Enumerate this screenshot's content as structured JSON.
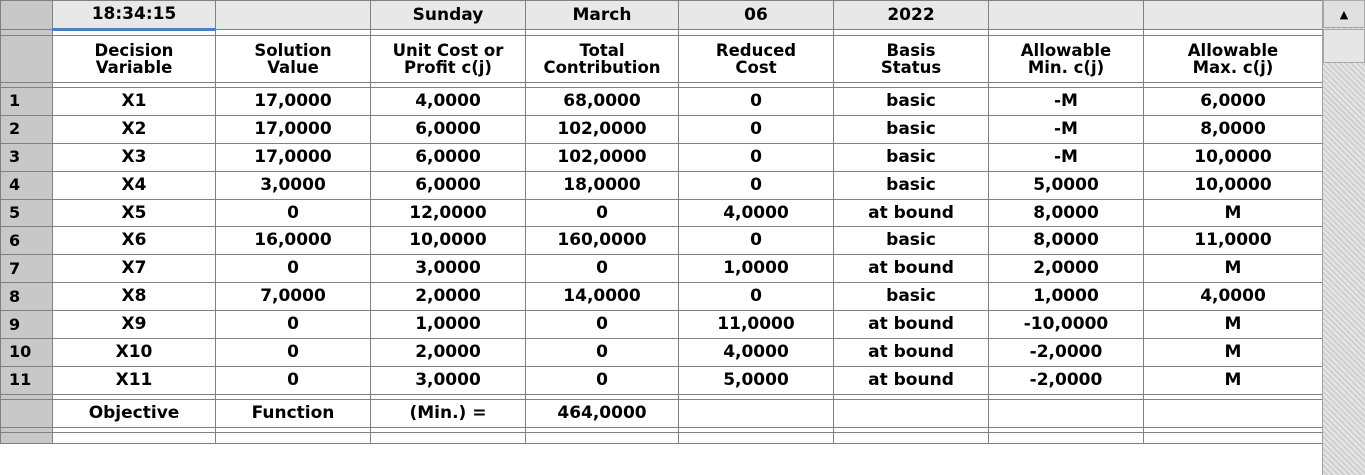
{
  "header": {
    "time": "18:34:15",
    "blank1": "",
    "weekday": "Sunday",
    "month": "March",
    "day": "06",
    "year": "2022"
  },
  "columns": [
    [
      "Decision",
      "Variable"
    ],
    [
      "Solution",
      "Value"
    ],
    [
      "Unit Cost or",
      "Profit c(j)"
    ],
    [
      "Total",
      "Contribution"
    ],
    [
      "Reduced",
      "Cost"
    ],
    [
      "Basis",
      "Status"
    ],
    [
      "Allowable",
      "Min. c(j)"
    ],
    [
      "Allowable",
      "Max. c(j)"
    ]
  ],
  "rows": [
    {
      "n": "1",
      "cells": [
        "X1",
        "17,0000",
        "4,0000",
        "68,0000",
        "0",
        "basic",
        "-M",
        "6,0000"
      ]
    },
    {
      "n": "2",
      "cells": [
        "X2",
        "17,0000",
        "6,0000",
        "102,0000",
        "0",
        "basic",
        "-M",
        "8,0000"
      ]
    },
    {
      "n": "3",
      "cells": [
        "X3",
        "17,0000",
        "6,0000",
        "102,0000",
        "0",
        "basic",
        "-M",
        "10,0000"
      ]
    },
    {
      "n": "4",
      "cells": [
        "X4",
        "3,0000",
        "6,0000",
        "18,0000",
        "0",
        "basic",
        "5,0000",
        "10,0000"
      ]
    },
    {
      "n": "5",
      "cells": [
        "X5",
        "0",
        "12,0000",
        "0",
        "4,0000",
        "at bound",
        "8,0000",
        "M"
      ]
    },
    {
      "n": "6",
      "cells": [
        "X6",
        "16,0000",
        "10,0000",
        "160,0000",
        "0",
        "basic",
        "8,0000",
        "11,0000"
      ]
    },
    {
      "n": "7",
      "cells": [
        "X7",
        "0",
        "3,0000",
        "0",
        "1,0000",
        "at bound",
        "2,0000",
        "M"
      ]
    },
    {
      "n": "8",
      "cells": [
        "X8",
        "7,0000",
        "2,0000",
        "14,0000",
        "0",
        "basic",
        "1,0000",
        "4,0000"
      ]
    },
    {
      "n": "9",
      "cells": [
        "X9",
        "0",
        "1,0000",
        "0",
        "11,0000",
        "at bound",
        "-10,0000",
        "M"
      ]
    },
    {
      "n": "10",
      "cells": [
        "X10",
        "0",
        "2,0000",
        "0",
        "4,0000",
        "at bound",
        "-2,0000",
        "M"
      ]
    },
    {
      "n": "11",
      "cells": [
        "X11",
        "0",
        "3,0000",
        "0",
        "5,0000",
        "at bound",
        "-2,0000",
        "M"
      ]
    }
  ],
  "objective": [
    "Objective",
    "Function",
    "(Min.) =",
    "464,0000"
  ],
  "scrollbar": {
    "up_icon": "scroll-up-arrow-icon",
    "up_glyph": "▲"
  },
  "colors": {
    "accent": "#4a7fc4",
    "header_bg": "#c8c8c8",
    "grid_line": "#808080"
  }
}
